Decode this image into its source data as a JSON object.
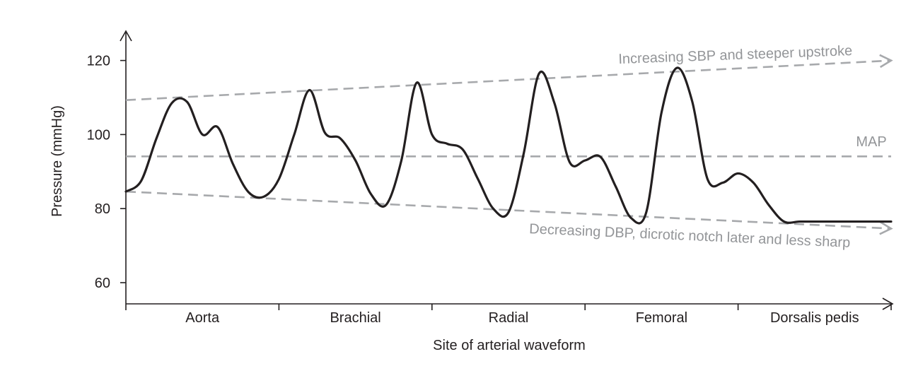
{
  "chart_data": {
    "type": "line",
    "xlabel": "Site of arterial waveform",
    "ylabel": "Pressure (mmHg)",
    "ylim": [
      55,
      125
    ],
    "yticks": [
      "60",
      "80",
      "100",
      "120"
    ],
    "categories": [
      "Aorta",
      "Brachial",
      "Radial",
      "Femoral",
      "Dorsalis pedis"
    ],
    "waveform": {
      "x": [
        0.0,
        0.1,
        0.2,
        0.3,
        0.4,
        0.5,
        0.6,
        0.7,
        0.8,
        0.9,
        1.0,
        1.1,
        1.2,
        1.3,
        1.4,
        1.5,
        1.6,
        1.7,
        1.8,
        1.9,
        2.0,
        2.1,
        2.2,
        2.3,
        2.4,
        2.5,
        2.6,
        2.7,
        2.8,
        2.9,
        3.0,
        3.1,
        3.2,
        3.3,
        3.4,
        3.5,
        3.6,
        3.7,
        3.8,
        3.9,
        4.0,
        4.1,
        4.2,
        4.3,
        4.4,
        4.5,
        4.6,
        4.7,
        4.8,
        4.9,
        5.0
      ],
      "y": [
        84.6,
        87.5,
        99.0,
        108.5,
        108.8,
        100.0,
        102.0,
        92.0,
        84.5,
        83.2,
        88.0,
        100.0,
        112.0,
        100.5,
        99.0,
        93.0,
        84.0,
        81.0,
        93.0,
        114.0,
        100.0,
        97.5,
        96.0,
        88.0,
        80.0,
        79.0,
        95.0,
        116.5,
        108.5,
        92.5,
        93.0,
        94.0,
        86.0,
        77.5,
        79.0,
        106.0,
        118.0,
        109.0,
        88.0,
        87.0,
        89.5,
        87.0,
        81.0,
        76.5,
        76.5,
        76.5,
        76.5,
        76.5,
        76.5,
        76.5,
        76.5
      ]
    },
    "trend_lines": [
      {
        "label": "Increasing SBP and steeper upstroke",
        "y_start": 109.3,
        "y_end": 120
      },
      {
        "label": "MAP",
        "y_start": 94.1,
        "y_end": 94.1
      },
      {
        "label": "Decreasing DBP, dicrotic notch later and less sharp",
        "y_start": 84.6,
        "y_end": 74.6
      }
    ],
    "grid": false,
    "legend": "none"
  }
}
